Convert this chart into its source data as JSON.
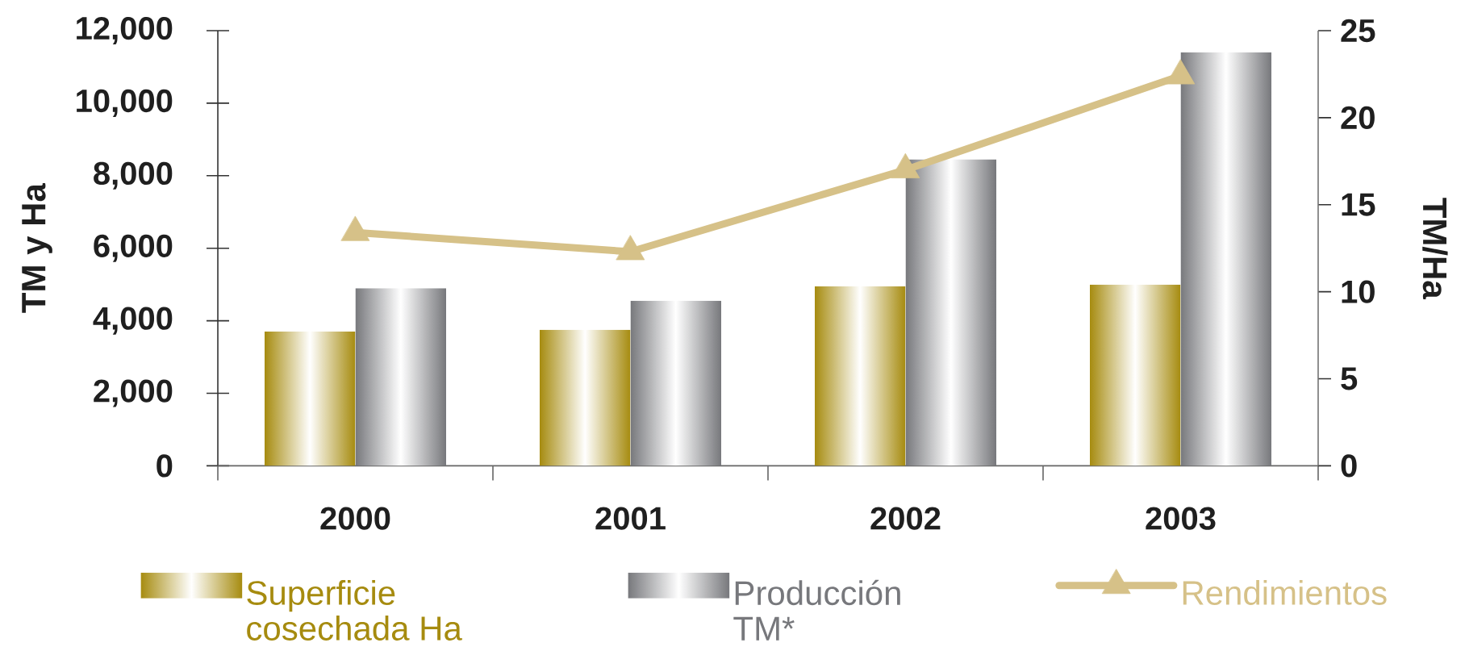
{
  "chart_data": {
    "type": "bar",
    "categories": [
      "2000",
      "2001",
      "2002",
      "2003"
    ],
    "ylabel": "TM y Ha",
    "y2label": "TM/Ha",
    "ylim": [
      0,
      12000
    ],
    "yticks": [
      0,
      {
        "value": 2000,
        "label": "2,000"
      },
      {
        "value": 4000,
        "label": "4,000"
      },
      {
        "value": 6000,
        "label": "6,000"
      },
      {
        "value": 8000,
        "label": "8,000"
      },
      {
        "value": 10000,
        "label": "10,000"
      },
      {
        "value": 12000,
        "label": "12,000"
      }
    ],
    "y2lim": [
      0,
      25
    ],
    "y2ticks": [
      0,
      5,
      10,
      15,
      20,
      25
    ],
    "series": [
      {
        "name": "Superficie cosechada Ha",
        "color": "#a68b0f",
        "values": [
          3700,
          3750,
          4950,
          5000
        ]
      },
      {
        "name": "Producción TM*",
        "color": "#77787c",
        "values": [
          4900,
          4550,
          8450,
          11400
        ]
      },
      {
        "name": "Rendimientos",
        "type": "line",
        "axis": "y2",
        "marker": "triangle",
        "color": "#d6c188",
        "values": [
          13.4,
          12.3,
          17.0,
          22.4
        ]
      }
    ],
    "legend": "bottom"
  }
}
